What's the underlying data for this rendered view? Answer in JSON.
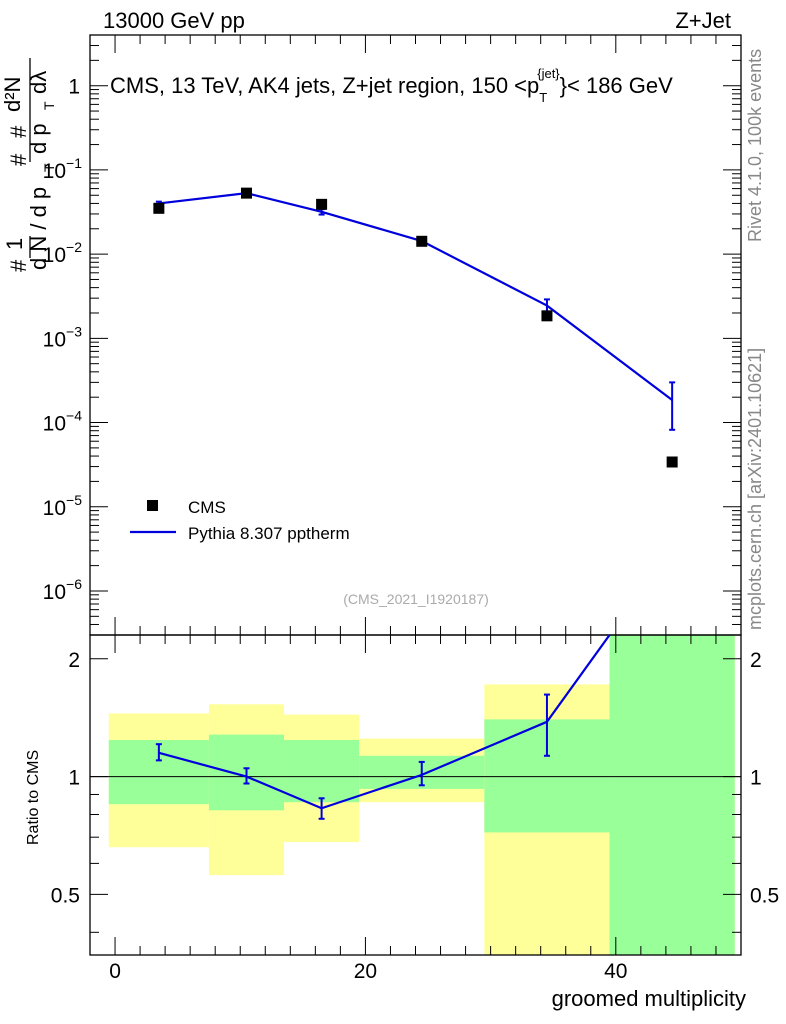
{
  "header": {
    "left": "13000 GeV pp",
    "right": "Z+Jet"
  },
  "side": {
    "version": "Rivet 4.1.0,  100k events",
    "source": "mcplots.cern.ch [arXiv:2401.10621]"
  },
  "chart_data": [
    {
      "type": "scatter",
      "panel": "main",
      "title": "CMS, 13 TeV, AK4 jets, Z+jet region, 150 <p_T^{jet}< 186 GeV",
      "title_parts": {
        "prefix": "CMS, 13 TeV, AK4 jets, Z+jet region, 150 <p",
        "sup": "{jet}",
        "sub": "T",
        "suffix": "}< 186 GeV"
      },
      "ylabel": "1/N dN/dp_T d2N/dp_T dlambda",
      "ylabel_parts": {
        "hash1": "#",
        "hash2": "#",
        "hash3": "#",
        "one": "1",
        "dN": "d N / d p",
        "T1": "T",
        "d2N": "d²N",
        "dpT": "d p",
        "T2": "T",
        "dlambda": "dλ"
      },
      "yscale": "log",
      "ylim": [
        3e-07,
        4.0
      ],
      "xlim": [
        -2,
        50
      ],
      "ytick_labels": [
        {
          "value": 1,
          "label": "1"
        },
        {
          "value": 0.1,
          "base": "10",
          "exp": "−1"
        },
        {
          "value": 0.01,
          "base": "10",
          "exp": "−2"
        },
        {
          "value": 0.001,
          "base": "10",
          "exp": "−3"
        },
        {
          "value": 0.0001,
          "base": "10",
          "exp": "−4"
        },
        {
          "value": 1e-05,
          "base": "10",
          "exp": "−5"
        },
        {
          "value": 1e-06,
          "base": "10",
          "exp": "−6"
        }
      ],
      "legend": {
        "location": "lower-left",
        "entries": [
          "CMS",
          "Pythia 8.307 pptherm"
        ]
      },
      "watermark": "(CMS_2021_I1920187)",
      "series": [
        {
          "name": "CMS",
          "marker": "square",
          "x": [
            3.5,
            10.5,
            16.5,
            24.5,
            34.5,
            44.5
          ],
          "y": [
            0.035,
            0.053,
            0.039,
            0.0142,
            0.00185,
            3.4e-05
          ]
        },
        {
          "name": "Pythia 8.307 pptherm",
          "color": "#0000dd",
          "x": [
            3.5,
            10.5,
            16.5,
            24.5,
            34.5,
            44.5
          ],
          "y": [
            0.04,
            0.053,
            0.0318,
            0.0143,
            0.00245,
            0.000185
          ],
          "err_low": [
            0.038,
            0.051,
            0.0295,
            0.0136,
            0.00205,
            8.2e-05
          ],
          "err_high": [
            0.042,
            0.055,
            0.0342,
            0.015,
            0.0029,
            0.0003
          ]
        }
      ]
    },
    {
      "type": "line",
      "panel": "ratio",
      "ylabel": "Ratio to CMS",
      "xlabel": "groomed multiplicity",
      "xlim": [
        -2,
        50
      ],
      "ylim": [
        0.35,
        2.3
      ],
      "yscale": "log",
      "xtick_labels": [
        {
          "value": 0,
          "label": "0"
        },
        {
          "value": 20,
          "label": "20"
        },
        {
          "value": 40,
          "label": "40"
        }
      ],
      "ytick_labels": [
        {
          "value": 0.5,
          "label": "0.5"
        },
        {
          "value": 1,
          "label": "1"
        },
        {
          "value": 2,
          "label": "2"
        }
      ],
      "bands": [
        {
          "x0": -0.5,
          "x1": 7.5,
          "yellow": [
            0.66,
            1.45
          ],
          "green": [
            0.85,
            1.24
          ]
        },
        {
          "x0": 7.5,
          "x1": 13.5,
          "yellow": [
            0.56,
            1.53
          ],
          "green": [
            0.82,
            1.28
          ]
        },
        {
          "x0": 13.5,
          "x1": 19.5,
          "yellow": [
            0.68,
            1.44
          ],
          "green": [
            0.86,
            1.24
          ]
        },
        {
          "x0": 19.5,
          "x1": 29.5,
          "yellow": [
            0.86,
            1.25
          ],
          "green": [
            0.93,
            1.13
          ]
        },
        {
          "x0": 29.5,
          "x1": 39.5,
          "yellow": [
            0.35,
            1.72
          ],
          "green": [
            0.72,
            1.4
          ]
        },
        {
          "x0": 39.5,
          "x1": 49.5,
          "yellow": [
            0.35,
            2.3
          ],
          "green": [
            0.35,
            2.3
          ]
        }
      ],
      "series": [
        {
          "name": "Pythia 8.307 pptherm / CMS",
          "color": "#0000dd",
          "x": [
            3.5,
            10.5,
            16.5,
            24.5,
            34.5,
            39.5
          ],
          "y": [
            1.15,
            1.0,
            0.83,
            1.01,
            1.38,
            2.3
          ],
          "err_low": [
            1.1,
            0.96,
            0.78,
            0.95,
            1.13,
            null
          ],
          "err_high": [
            1.21,
            1.05,
            0.88,
            1.09,
            1.62,
            null
          ]
        }
      ]
    }
  ]
}
